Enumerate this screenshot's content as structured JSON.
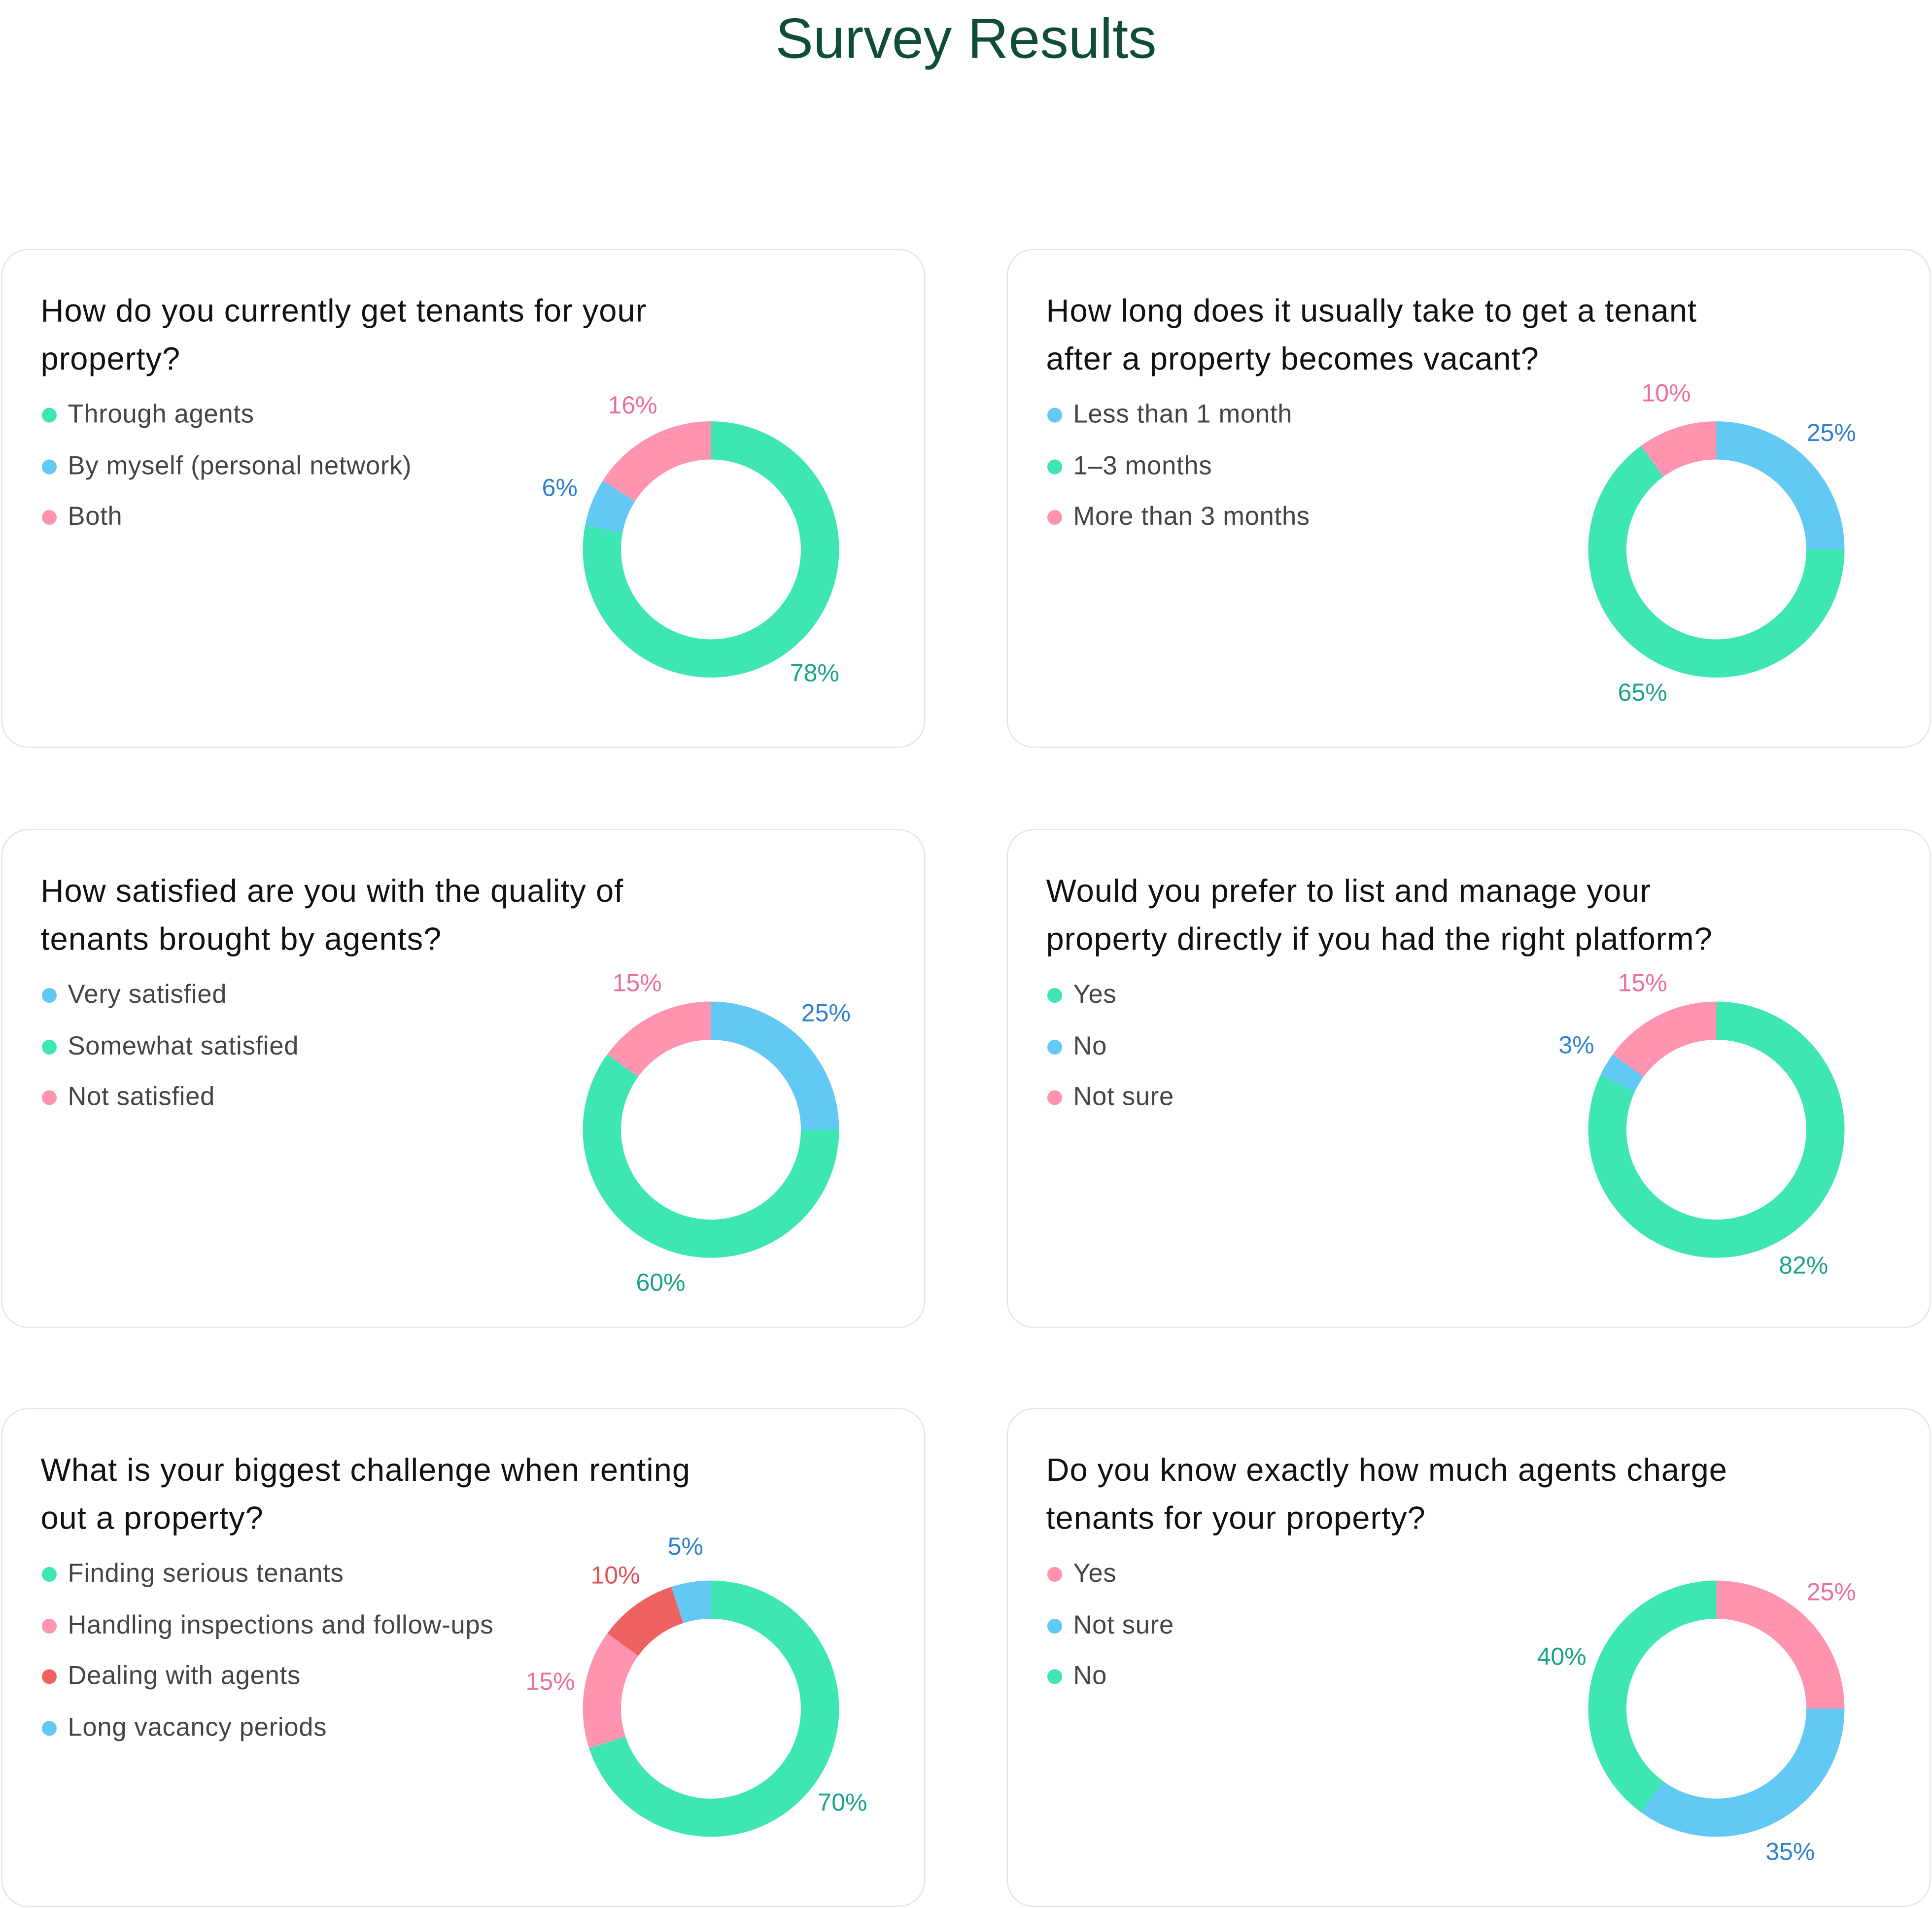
{
  "title": "Survey Results",
  "chart_data": [
    {
      "type": "pie",
      "title": "How do you currently get tenants for your property?",
      "categories": [
        "Through agents",
        "By myself (personal network)",
        "Both"
      ],
      "values": [
        78,
        6,
        16
      ],
      "value_labels": [
        "78%",
        "6%",
        "16%"
      ],
      "colors": [
        "#3de6b3",
        "#62c8f4",
        "#fe94b0"
      ],
      "label_colors": [
        "#1aa38a",
        "#2f80d1",
        "#ec6f97"
      ]
    },
    {
      "type": "pie",
      "title": "How long does it usually take to get a tenant after a property becomes vacant?",
      "categories": [
        "Less than 1 month",
        "1–3 months",
        "More than 3 months"
      ],
      "values": [
        25,
        65,
        10
      ],
      "value_labels": [
        "25%",
        "65%",
        "10%"
      ],
      "colors": [
        "#62c8f4",
        "#3de6b3",
        "#fe94b0"
      ],
      "label_colors": [
        "#2f80d1",
        "#1aa38a",
        "#ec6f97"
      ]
    },
    {
      "type": "pie",
      "title": "How satisfied are you with the quality of tenants brought by agents?",
      "categories": [
        "Very satisfied",
        "Somewhat satisfied",
        "Not satisfied"
      ],
      "values": [
        25,
        60,
        15
      ],
      "value_labels": [
        "25%",
        "60%",
        "15%"
      ],
      "colors": [
        "#62c8f4",
        "#3de6b3",
        "#fe94b0"
      ],
      "label_colors": [
        "#2f80d1",
        "#1aa38a",
        "#ec6f97"
      ]
    },
    {
      "type": "pie",
      "title": "Would you prefer to list and manage your property directly if you had the right platform?",
      "categories": [
        "Yes",
        "No",
        "Not sure"
      ],
      "values": [
        82,
        3,
        15
      ],
      "value_labels": [
        "82%",
        "3%",
        "15%"
      ],
      "colors": [
        "#3de6b3",
        "#62c8f4",
        "#fe94b0"
      ],
      "label_colors": [
        "#1aa38a",
        "#2f80d1",
        "#ec6f97"
      ]
    },
    {
      "type": "pie",
      "title": "What is your biggest challenge when renting out a property?",
      "categories": [
        "Finding serious tenants",
        "Handling inspections and follow-ups",
        "Dealing with agents",
        "Long vacancy periods"
      ],
      "values": [
        70,
        15,
        10,
        5
      ],
      "value_labels": [
        "70%",
        "15%",
        "10%",
        "5%"
      ],
      "colors": [
        "#3de6b3",
        "#fe94b0",
        "#f06262",
        "#62c8f4"
      ],
      "label_colors": [
        "#1aa38a",
        "#ec6f97",
        "#e04f5a",
        "#2f80d1"
      ]
    },
    {
      "type": "pie",
      "title": "Do you know exactly how much agents charge tenants for your property?",
      "categories": [
        "Yes",
        "Not sure",
        "No"
      ],
      "values": [
        25,
        35,
        40
      ],
      "value_labels": [
        "25%",
        "35%",
        "40%"
      ],
      "colors": [
        "#fe94b0",
        "#62c8f4",
        "#3de6b3"
      ],
      "label_colors": [
        "#ec6f97",
        "#2f80d1",
        "#1aa38a"
      ]
    }
  ]
}
